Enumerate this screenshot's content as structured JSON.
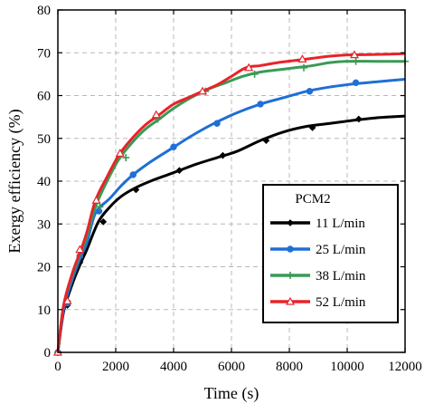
{
  "chart_data": {
    "type": "line",
    "title": "",
    "xlabel": "Time (s)",
    "ylabel": "Exergy efficiency (%)",
    "xlim": [
      0,
      12000
    ],
    "ylim": [
      0,
      80
    ],
    "xticks": [
      0,
      2000,
      4000,
      6000,
      8000,
      10000,
      12000
    ],
    "yticks": [
      0,
      10,
      20,
      30,
      40,
      50,
      60,
      70,
      80
    ],
    "grid": true,
    "legend_title": "PCM2",
    "legend_position": "lower-right",
    "series": [
      {
        "name": "11 L/min",
        "color": "#000000",
        "marker": "diamond",
        "x": [
          0,
          200,
          500,
          800,
          1000,
          1400,
          1800,
          2200,
          2700,
          3200,
          3800,
          4200,
          4800,
          5500,
          6200,
          7000,
          7800,
          8600,
          9400,
          10200,
          11000,
          12000
        ],
        "y": [
          0,
          9.5,
          16,
          21,
          24,
          30.5,
          34,
          36.5,
          38.5,
          40,
          41.5,
          42.5,
          44,
          45.5,
          47,
          49.5,
          51.5,
          52.8,
          53.5,
          54.2,
          54.8,
          55.2
        ],
        "marker_x": [
          0,
          330,
          760,
          1570,
          2700,
          4200,
          5700,
          7200,
          8800,
          10400
        ],
        "marker_y": [
          0,
          11,
          21,
          30.5,
          38,
          42.5,
          46,
          49.5,
          52.5,
          54.5
        ]
      },
      {
        "name": "25 L/min",
        "color": "#1f6fd6",
        "marker": "circle",
        "x": [
          0,
          200,
          500,
          800,
          1000,
          1300,
          1800,
          2200,
          2600,
          3200,
          3900,
          4600,
          5400,
          6200,
          7000,
          7800,
          8600,
          9400,
          10200,
          11000,
          12000
        ],
        "y": [
          0,
          10,
          17,
          22.5,
          25.5,
          32.5,
          36,
          39,
          41.5,
          44.5,
          47.5,
          50.5,
          53.5,
          56,
          58,
          59.5,
          61,
          62,
          62.7,
          63.2,
          63.8
        ],
        "marker_x": [
          0,
          330,
          760,
          1420,
          2600,
          4000,
          5500,
          7000,
          8700,
          10300
        ],
        "marker_y": [
          0,
          11.5,
          22.5,
          33,
          41.5,
          48,
          53.5,
          58,
          61,
          63
        ]
      },
      {
        "name": "38 L/min",
        "color": "#3a9a55",
        "marker": "plus",
        "x": [
          0,
          200,
          500,
          800,
          1000,
          1300,
          1700,
          2100,
          2500,
          3000,
          3500,
          4000,
          4600,
          5200,
          5800,
          6400,
          7000,
          7600,
          8200,
          8800,
          9400,
          10000,
          11000,
          12000
        ],
        "y": [
          0,
          11,
          18,
          23.5,
          27,
          34,
          40,
          45,
          48.5,
          52,
          54.5,
          57,
          59.5,
          61.5,
          63,
          64.5,
          65.5,
          66,
          66.5,
          67,
          67.7,
          68,
          68,
          68
        ],
        "marker_x": [
          0,
          330,
          760,
          1450,
          2350,
          3450,
          5100,
          6800,
          8500,
          10300,
          12000
        ],
        "marker_y": [
          0,
          12,
          23.5,
          34,
          45.5,
          54.5,
          61,
          65,
          66.5,
          68,
          68
        ]
      },
      {
        "name": "52 L/min",
        "color": "#e8232a",
        "marker": "triangle",
        "x": [
          0,
          200,
          500,
          800,
          1000,
          1300,
          1700,
          2100,
          2500,
          3000,
          3500,
          4000,
          4500,
          5000,
          5500,
          6000,
          6500,
          7000,
          7600,
          8200,
          8800,
          9400,
          10000,
          11000,
          12000
        ],
        "y": [
          0,
          11,
          18.5,
          24,
          28,
          35.5,
          41,
          46,
          49.5,
          53,
          55.5,
          58,
          59.5,
          61,
          62.5,
          64.5,
          66.5,
          67,
          67.7,
          68.2,
          68.7,
          69.2,
          69.5,
          69.6,
          69.8
        ],
        "marker_x": [
          0,
          330,
          760,
          1330,
          2150,
          3400,
          5000,
          6600,
          8450,
          10250
        ],
        "marker_y": [
          0,
          12,
          24,
          35.5,
          46.5,
          55.5,
          61,
          66.5,
          68.5,
          69.5
        ]
      }
    ]
  }
}
